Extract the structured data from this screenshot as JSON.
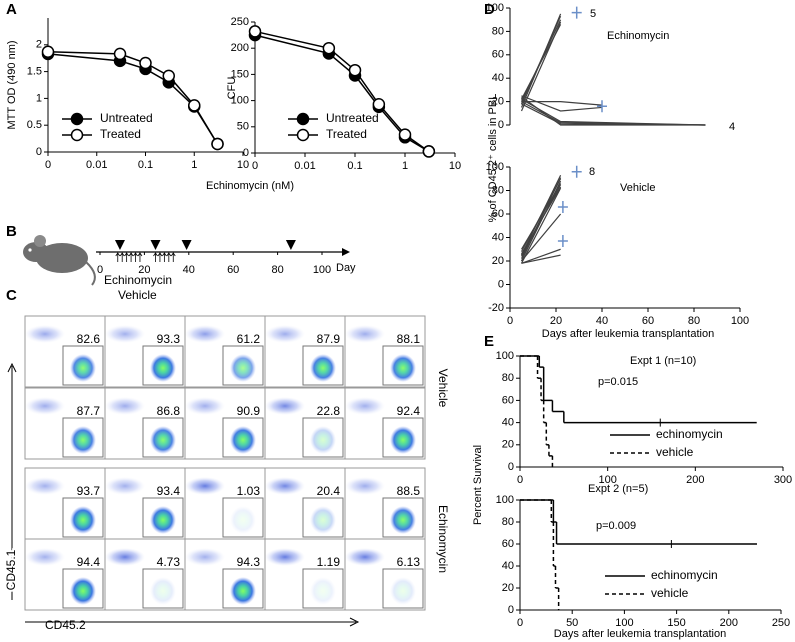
{
  "panel_labels": [
    "A",
    "B",
    "C",
    "D",
    "E"
  ],
  "chart_data": [
    {
      "type": "line",
      "xscale": "log",
      "ylabel": "MTT OD (490 nm)",
      "xlabel": "Echinomycin (nM)",
      "x": [
        0,
        0.03,
        0.1,
        0.3,
        1,
        3
      ],
      "xlim": [
        0,
        10
      ],
      "xticks": [
        0,
        0.01,
        0.1,
        1,
        10
      ],
      "ylim": [
        0,
        2.5
      ],
      "yticks": [
        0,
        0.5,
        1,
        1.5,
        2
      ],
      "series": [
        {
          "name": "Untreated",
          "color": "#000000",
          "marker": "filled",
          "values": [
            1.83,
            1.7,
            1.55,
            1.3,
            0.85,
            0.15
          ]
        },
        {
          "name": "Treated",
          "color": "#000000",
          "marker": "open",
          "values": [
            1.87,
            1.83,
            1.66,
            1.42,
            0.87,
            0.15
          ]
        }
      ]
    },
    {
      "type": "line",
      "xscale": "log",
      "ylabel": "CFU",
      "x": [
        0,
        0.03,
        0.1,
        0.3,
        1,
        3
      ],
      "xlim": [
        0,
        10
      ],
      "xticks": [
        0,
        0.01,
        0.1,
        1,
        10
      ],
      "ylim": [
        0,
        250
      ],
      "yticks": [
        0,
        50,
        100,
        150,
        200,
        250
      ],
      "series": [
        {
          "name": "Untreated",
          "color": "#000000",
          "marker": "filled",
          "values": [
            225,
            190,
            148,
            88,
            30,
            3
          ]
        },
        {
          "name": "Treated",
          "color": "#000000",
          "marker": "open",
          "values": [
            232,
            200,
            158,
            93,
            35,
            3
          ]
        }
      ]
    },
    {
      "type": "line",
      "annotations": [
        "5",
        "Echinomycin",
        "4"
      ],
      "xlim": [
        0,
        100
      ],
      "ylim": [
        0,
        100
      ],
      "yticks": [
        0,
        20,
        40,
        60,
        80,
        100
      ],
      "line_color": "#404040",
      "lines": [
        {
          "x": [
            5,
            22
          ],
          "values": [
            15,
            95
          ]
        },
        {
          "x": [
            5,
            22
          ],
          "values": [
            18,
            93
          ]
        },
        {
          "x": [
            5,
            22
          ],
          "values": [
            20,
            90
          ]
        },
        {
          "x": [
            5,
            22
          ],
          "values": [
            12,
            88
          ]
        },
        {
          "x": [
            5,
            22
          ],
          "values": [
            22,
            86
          ]
        },
        {
          "x": [
            5,
            22,
            40
          ],
          "values": [
            20,
            20,
            17
          ]
        },
        {
          "x": [
            5,
            22,
            40
          ],
          "values": [
            25,
            12,
            15
          ]
        },
        {
          "x": [
            5,
            22,
            85
          ],
          "values": [
            22,
            3,
            0
          ]
        },
        {
          "x": [
            5,
            22,
            85
          ],
          "values": [
            18,
            1,
            0
          ]
        },
        {
          "x": [
            5,
            22,
            85
          ],
          "values": [
            24,
            0,
            0
          ]
        },
        {
          "x": [
            5,
            22,
            85
          ],
          "values": [
            20,
            2,
            0
          ]
        }
      ],
      "deaths": {
        "color": "#6b8fc8",
        "x": [
          29,
          40
        ],
        "values": [
          96,
          16
        ]
      }
    },
    {
      "type": "line",
      "annotations": [
        "8",
        "Vehicle"
      ],
      "ylabel": "% of CD45.2⁺ cells in PBL",
      "xlabel": "Days after leukemia transplantation",
      "xlim": [
        0,
        100
      ],
      "xticks": [
        0,
        20,
        40,
        60,
        80,
        100
      ],
      "ylim": [
        -20,
        100
      ],
      "yticks": [
        -20,
        0,
        20,
        40,
        60,
        80,
        100
      ],
      "line_color": "#404040",
      "lines": [
        {
          "x": [
            5,
            22
          ],
          "values": [
            25,
            93
          ]
        },
        {
          "x": [
            5,
            22
          ],
          "values": [
            22,
            91
          ]
        },
        {
          "x": [
            5,
            22
          ],
          "values": [
            28,
            90
          ]
        },
        {
          "x": [
            5,
            22
          ],
          "values": [
            20,
            88
          ]
        },
        {
          "x": [
            5,
            22
          ],
          "values": [
            30,
            86
          ]
        },
        {
          "x": [
            5,
            22
          ],
          "values": [
            24,
            85
          ]
        },
        {
          "x": [
            5,
            22
          ],
          "values": [
            26,
            83
          ]
        },
        {
          "x": [
            5,
            22
          ],
          "values": [
            18,
            82
          ]
        },
        {
          "x": [
            5,
            22
          ],
          "values": [
            20,
            60
          ]
        },
        {
          "x": [
            5,
            22
          ],
          "values": [
            18,
            30
          ]
        },
        {
          "x": [
            5,
            22
          ],
          "values": [
            18,
            25
          ]
        }
      ],
      "deaths": {
        "color": "#6b8fc8",
        "x": [
          29,
          23,
          23
        ],
        "values": [
          96,
          66,
          37
        ]
      }
    },
    {
      "type": "step",
      "annotations": [
        "Expt 1 (n=10)",
        "p=0.015"
      ],
      "ylabel": "Percent Survival",
      "xlim": [
        0,
        300
      ],
      "xticks": [
        0,
        100,
        200,
        300
      ],
      "ylim": [
        0,
        100
      ],
      "yticks": [
        0,
        20,
        40,
        60,
        80,
        100
      ],
      "series": [
        {
          "name": "echinomycin",
          "color": "#000000",
          "dash": "solid",
          "x": [
            0,
            22,
            27,
            37,
            50,
            270
          ],
          "values": [
            100,
            90,
            60,
            50,
            40,
            40
          ],
          "censored_x": [
            160
          ]
        },
        {
          "name": "vehicle",
          "color": "#000000",
          "dash": "dashed",
          "x": [
            0,
            20,
            24,
            27,
            30,
            33,
            37
          ],
          "values": [
            100,
            80,
            60,
            40,
            20,
            10,
            0
          ]
        }
      ]
    },
    {
      "type": "step",
      "annotations": [
        "Expt 2 (n=5)",
        "p=0.009"
      ],
      "xlabel": "Days after leukemia transplantation",
      "xlim": [
        0,
        250
      ],
      "xticks": [
        0,
        50,
        100,
        150,
        200,
        250
      ],
      "ylim": [
        0,
        100
      ],
      "yticks": [
        0,
        20,
        40,
        60,
        80,
        100
      ],
      "series": [
        {
          "name": "echinomycin",
          "color": "#000000",
          "dash": "solid",
          "x": [
            0,
            32,
            35,
            227
          ],
          "values": [
            100,
            80,
            60,
            60
          ],
          "censored_x": [
            145
          ]
        },
        {
          "name": "vehicle",
          "color": "#000000",
          "dash": "dashed",
          "x": [
            0,
            30,
            32,
            34,
            37
          ],
          "values": [
            100,
            80,
            40,
            20,
            0
          ]
        }
      ]
    }
  ],
  "timeline": {
    "ticks": [
      0,
      20,
      40,
      60,
      80,
      100
    ],
    "unit": "Day",
    "sample_days": [
      9,
      25,
      39,
      86
    ],
    "dose_days": [
      8,
      10,
      12,
      14,
      16,
      18,
      25,
      27,
      29,
      31,
      33
    ],
    "labels": [
      "Echinomycin",
      "Vehicle"
    ]
  },
  "flow": {
    "y_label": "CD45.1",
    "x_label": "CD45.2",
    "groups": [
      {
        "name": "Vehicle",
        "rows": [
          [
            82.6,
            93.3,
            61.2,
            87.9,
            88.1
          ],
          [
            87.7,
            86.8,
            90.9,
            22.8,
            92.4
          ]
        ]
      },
      {
        "name": "Echinomycin",
        "rows": [
          [
            93.7,
            93.4,
            1.03,
            20.4,
            88.5
          ],
          [
            94.4,
            4.73,
            94.3,
            1.19,
            6.13
          ]
        ]
      }
    ]
  }
}
